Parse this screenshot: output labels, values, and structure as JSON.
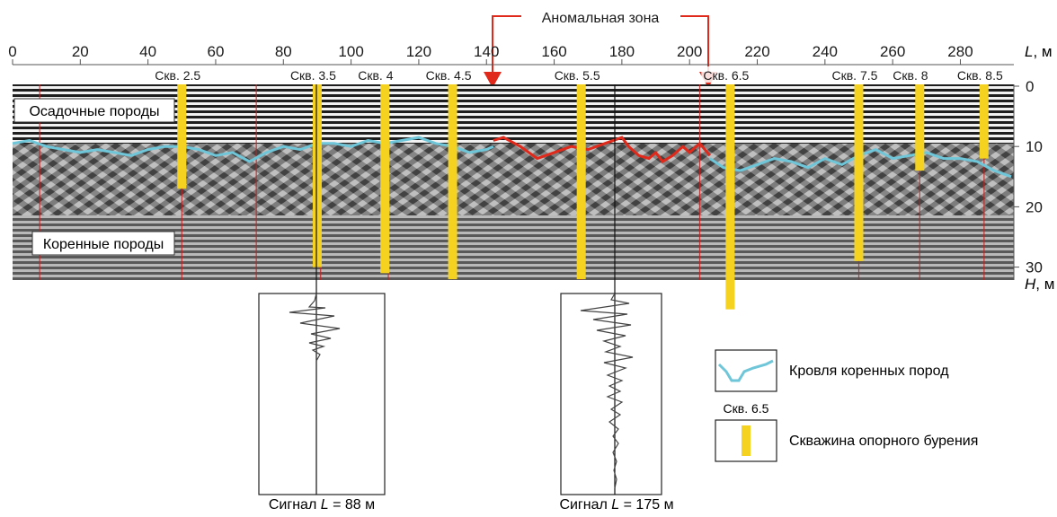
{
  "title": {
    "anomaly_label": "Аномальная зона"
  },
  "axis_top": {
    "ticks": [
      "0",
      "20",
      "40",
      "60",
      "80",
      "100",
      "120",
      "140",
      "160",
      "180",
      "200",
      "220",
      "240",
      "260",
      "280"
    ],
    "unit_var": "L",
    "unit_suffix": ", м"
  },
  "axis_right": {
    "ticks": [
      "0",
      "10",
      "20",
      "30"
    ],
    "unit_var": "H",
    "unit_suffix": ", м"
  },
  "radar": {
    "layer_top_label": "Осадочные породы",
    "layer_bottom_label": "Коренные породы",
    "image_description": "GPR radargram"
  },
  "boreholes": [
    {
      "label": "Скв. 2.5",
      "L": 50,
      "depth": 17
    },
    {
      "label": "Скв. 3.5",
      "L": 90,
      "depth": 30
    },
    {
      "label": "Скв. 4",
      "L": 110,
      "depth": 31
    },
    {
      "label": "Скв. 4.5",
      "L": 130,
      "depth": 32
    },
    {
      "label": "Скв. 5.5",
      "L": 168,
      "depth": 32
    },
    {
      "label": "Скв. 6.5",
      "L": 212,
      "depth": 37
    },
    {
      "label": "Скв. 7.5",
      "L": 250,
      "depth": 29
    },
    {
      "label": "Скв. 8",
      "L": 268,
      "depth": 14
    },
    {
      "label": "Скв. 8.5",
      "L": 287,
      "depth": 12
    }
  ],
  "signals": [
    {
      "label_prefix": "Сигнал ",
      "var": "L",
      "label_suffix": " = 88 м"
    },
    {
      "label_prefix": "Сигнал ",
      "var": "L",
      "label_suffix": " = 175 м"
    }
  ],
  "legend": {
    "bedrock_label": "Кровля коренных пород",
    "borehole_sample_label": "Скв. 6.5",
    "borehole_label": "Скважина опорного бурения"
  },
  "colors": {
    "bedrock_line": "#6ec6d8",
    "anomaly_line": "#e0291b",
    "borehole": "#f4d21f",
    "marker_line": "#c81e1e"
  }
}
